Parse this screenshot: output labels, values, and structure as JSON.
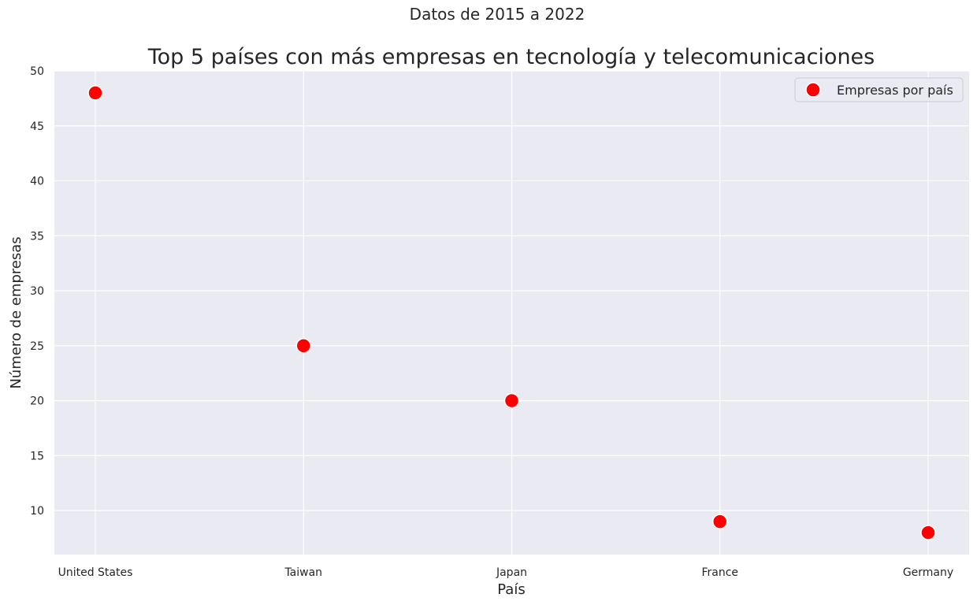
{
  "chart_data": {
    "type": "scatter",
    "suptitle": "Datos de 2015 a 2022",
    "title": "Top 5 países con más empresas en tecnología y telecomunicaciones",
    "xlabel": "País",
    "ylabel": "Número de empresas",
    "categories": [
      "United States",
      "Taiwan",
      "Japan",
      "France",
      "Germany"
    ],
    "series": [
      {
        "name": "Empresas por país",
        "values": [
          48,
          25,
          20,
          9,
          8
        ],
        "color": "#ff0000"
      }
    ],
    "ylim": [
      6,
      50
    ],
    "yticks": [
      10,
      15,
      20,
      25,
      30,
      35,
      40,
      45,
      50
    ],
    "grid": true,
    "legend_position": "top-right",
    "colors": {
      "background": "#eaeaf2",
      "grid": "#ffffff",
      "marker": "#ff0000"
    }
  }
}
